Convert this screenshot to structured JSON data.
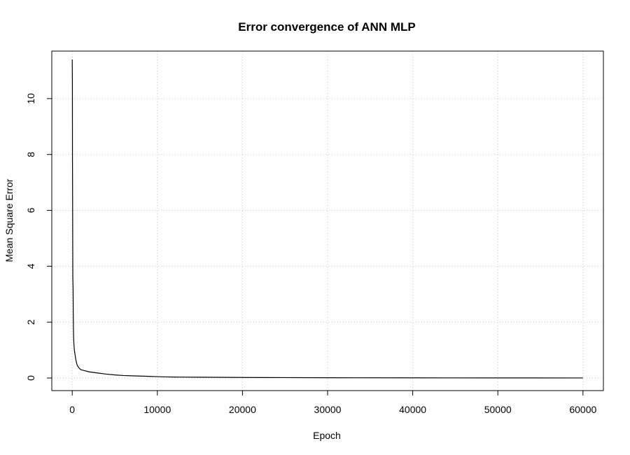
{
  "chart_data": {
    "type": "line",
    "title": "Error convergence of ANN MLP",
    "xlabel": "Epoch",
    "ylabel": "Mean Square Error",
    "xlim": [
      -2400,
      62400
    ],
    "ylim": [
      -0.45,
      11.7
    ],
    "x_ticks": [
      0,
      10000,
      20000,
      30000,
      40000,
      50000,
      60000
    ],
    "y_ticks": [
      0,
      2,
      4,
      6,
      8,
      10
    ],
    "grid": true,
    "series": [
      {
        "color": "#000000",
        "x": [
          0,
          10,
          20,
          30,
          50,
          70,
          100,
          130,
          160,
          200,
          250,
          300,
          400,
          500,
          600,
          800,
          1000,
          1500,
          2000,
          3000,
          4000,
          5000,
          6000,
          7000,
          8000,
          9000,
          10000,
          11000,
          12000,
          15000,
          20000,
          25000,
          30000,
          40000,
          50000,
          60000
        ],
        "y": [
          11.4,
          11.0,
          10.5,
          8.0,
          6.0,
          3.6,
          3.2,
          2.0,
          1.5,
          1.2,
          1.0,
          0.9,
          0.7,
          0.55,
          0.45,
          0.36,
          0.3,
          0.26,
          0.22,
          0.18,
          0.14,
          0.11,
          0.09,
          0.08,
          0.07,
          0.06,
          0.05,
          0.04,
          0.035,
          0.03,
          0.02,
          0.015,
          0.01,
          0.007,
          0.005,
          0.003
        ]
      }
    ]
  }
}
